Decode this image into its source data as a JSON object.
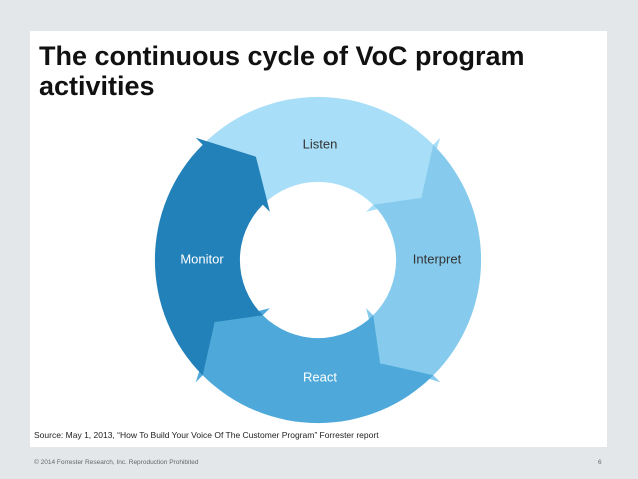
{
  "title": "The continuous cycle of VoC program activities",
  "nodes": [
    {
      "label": "Listen",
      "color": "#a8def7"
    },
    {
      "label": "Interpret",
      "color": "#86cbee"
    },
    {
      "label": "React",
      "color": "#4ea9da"
    },
    {
      "label": "Monitor",
      "color": "#2381b9"
    }
  ],
  "source": "Source: May 1, 2013, “How To Build Your Voice Of The Customer Program” Forrester report",
  "footer": {
    "copyright": "© 2014 Forrester Research, Inc. Reproduction Prohibited",
    "page": "6"
  }
}
